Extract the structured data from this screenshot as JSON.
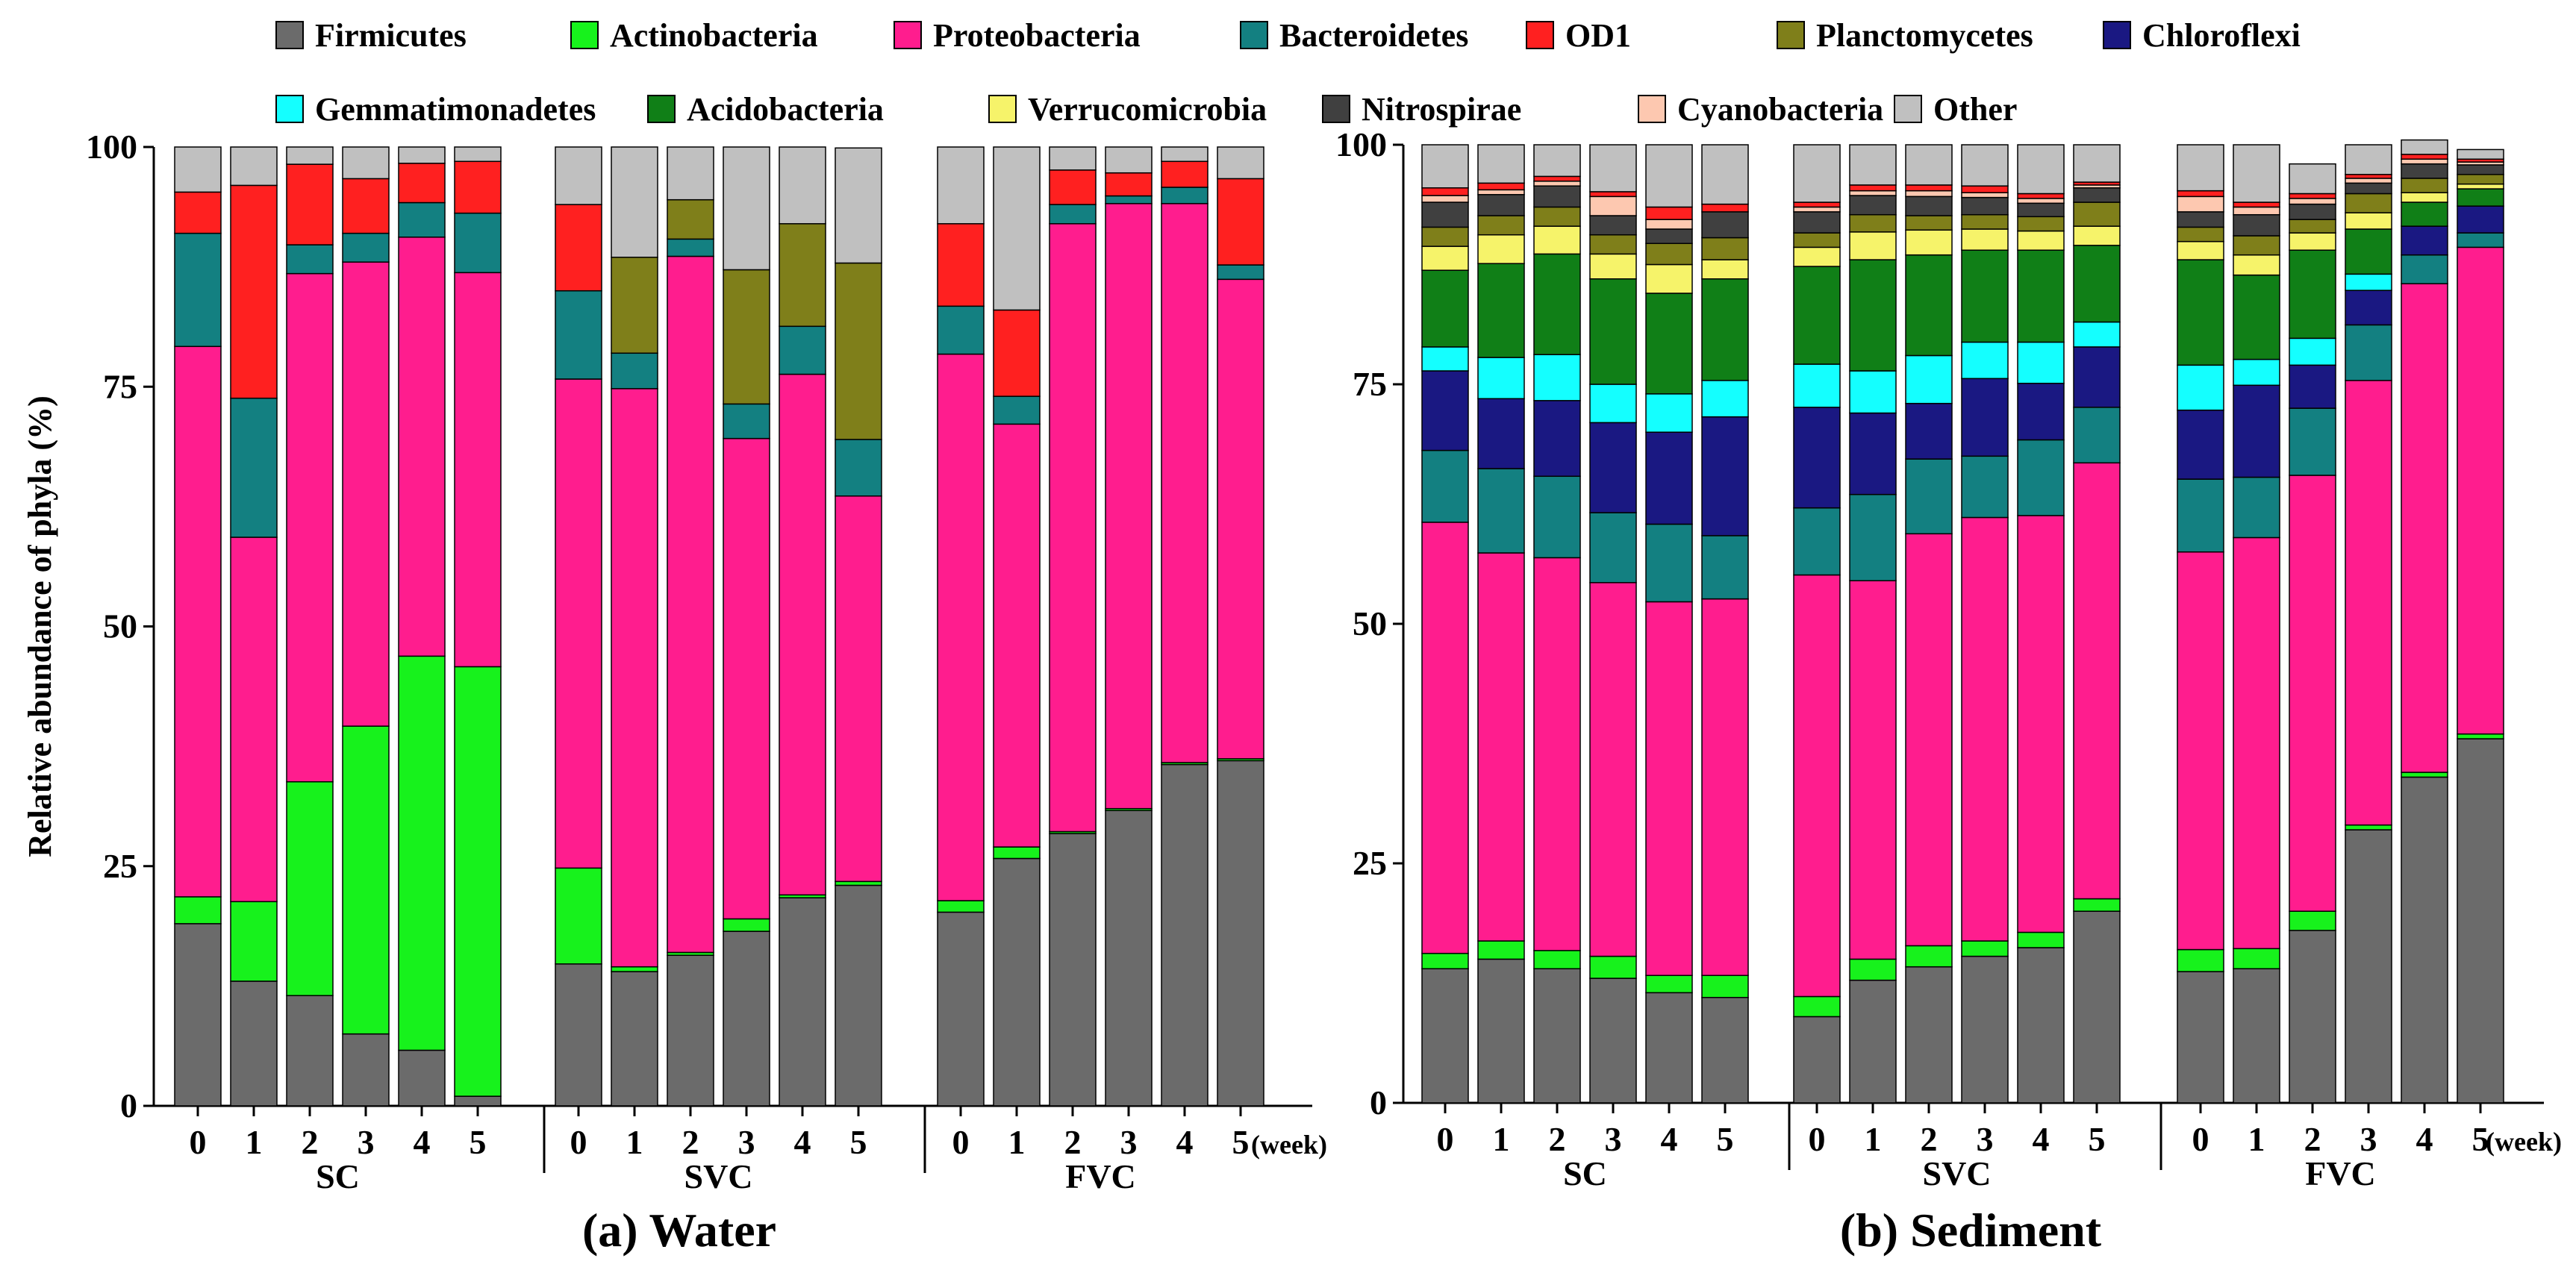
{
  "legend": [
    {
      "name": "Firmicutes",
      "color": "#6b6b6b"
    },
    {
      "name": "Actinobacteria",
      "color": "#17f21c"
    },
    {
      "name": "Proteobacteria",
      "color": "#ff1d8e"
    },
    {
      "name": "Bacteroidetes",
      "color": "#138081"
    },
    {
      "name": "OD1",
      "color": "#ff2020"
    },
    {
      "name": "Planctomycetes",
      "color": "#7f7f1a"
    },
    {
      "name": "Chloroflexi",
      "color": "#1a1882"
    },
    {
      "name": "Gemmatimonadetes",
      "color": "#14ffff"
    },
    {
      "name": "Acidobacteria",
      "color": "#107f17"
    },
    {
      "name": "Verrucomicrobia",
      "color": "#f6f36a"
    },
    {
      "name": "Nitrospirae",
      "color": "#404040"
    },
    {
      "name": "Cyanobacteria",
      "color": "#fdc8b0"
    },
    {
      "name": "Other",
      "color": "#c0c0c0"
    }
  ],
  "chart_data": [
    {
      "type": "bar",
      "stacked": true,
      "title": "(a) Water",
      "ylabel": "Relative abundance of phyla (%)",
      "ylim": [
        0,
        100
      ],
      "yticks": [
        "0",
        "25",
        "50",
        "75",
        "100"
      ],
      "week_unit": "(week)",
      "groups": [
        {
          "name": "SC",
          "categories": [
            "0",
            "1",
            "2",
            "3",
            "4",
            "5"
          ]
        },
        {
          "name": "SVC",
          "categories": [
            "0",
            "1",
            "2",
            "3",
            "4",
            "5"
          ]
        },
        {
          "name": "FVC",
          "categories": [
            "0",
            "1",
            "2",
            "3",
            "4",
            "5"
          ]
        }
      ],
      "series": [
        {
          "name": "Firmicutes",
          "values": [
            19,
            13,
            11.5,
            7.5,
            5.8,
            1,
            14.8,
            14,
            15.7,
            18.2,
            21.7,
            23,
            20.2,
            25.8,
            28.4,
            30.8,
            35.6,
            36
          ]
        },
        {
          "name": "Actinobacteria",
          "values": [
            2.8,
            8.3,
            22.3,
            32.1,
            41.1,
            44.8,
            10,
            0.5,
            0.3,
            1.3,
            0.3,
            0.4,
            1.2,
            1.2,
            0.2,
            0.2,
            0.2,
            0.2
          ]
        },
        {
          "name": "Proteobacteria",
          "values": [
            57.4,
            38,
            53,
            48.4,
            43.7,
            41.1,
            51,
            60.3,
            72.6,
            50.1,
            54.3,
            40.2,
            57,
            44.1,
            63.4,
            63.1,
            58.3,
            50
          ]
        },
        {
          "name": "Bacteroidetes",
          "values": [
            11.8,
            14.5,
            3,
            3,
            3.6,
            6.2,
            9.2,
            3.7,
            1.8,
            3.6,
            5,
            5.9,
            5,
            2.9,
            2,
            0.8,
            1.7,
            1.5
          ]
        },
        {
          "name": "OD1",
          "values": [
            4.3,
            22.2,
            8.4,
            5.7,
            4.1,
            5.4,
            9,
            0,
            0,
            0,
            0,
            0,
            8.6,
            9,
            3.6,
            2.4,
            2.7,
            9
          ]
        },
        {
          "name": "Planctomycetes",
          "values": [
            0,
            0,
            0,
            0,
            0,
            0,
            0,
            10,
            4.1,
            14,
            10.7,
            18.4,
            0,
            0,
            0,
            0,
            0,
            0
          ]
        },
        {
          "name": "Other",
          "values": [
            4.7,
            4,
            1.8,
            3.3,
            1.7,
            1.5,
            6,
            11.5,
            5.5,
            12.8,
            8,
            12,
            8,
            17,
            2.4,
            2.7,
            1.5,
            3.3
          ]
        }
      ]
    },
    {
      "type": "bar",
      "stacked": true,
      "title": "(b) Sediment",
      "ylim": [
        0,
        100
      ],
      "yticks": [
        "0",
        "25",
        "50",
        "75",
        "100"
      ],
      "week_unit": "(week)",
      "groups": [
        {
          "name": "SC",
          "categories": [
            "0",
            "1",
            "2",
            "3",
            "4",
            "5"
          ]
        },
        {
          "name": "SVC",
          "categories": [
            "0",
            "1",
            "2",
            "3",
            "4",
            "5"
          ]
        },
        {
          "name": "FVC",
          "categories": [
            "0",
            "1",
            "2",
            "3",
            "4",
            "5"
          ]
        }
      ],
      "series": [
        {
          "name": "Firmicutes",
          "values": [
            14,
            15,
            14,
            13,
            11.5,
            11,
            9,
            12.8,
            14.2,
            15.3,
            16.2,
            20,
            13.7,
            14,
            18,
            28.5,
            34,
            38
          ]
        },
        {
          "name": "Actinobacteria",
          "values": [
            1.6,
            1.9,
            1.9,
            2.3,
            1.8,
            2.3,
            2.1,
            2.2,
            2.2,
            1.6,
            1.6,
            1.3,
            2.3,
            2.1,
            2,
            0.5,
            0.5,
            0.5
          ]
        },
        {
          "name": "Proteobacteria",
          "values": [
            45,
            40.5,
            41,
            39,
            39,
            39.3,
            44,
            39.5,
            43,
            44.2,
            43.5,
            45.5,
            41.5,
            42.9,
            45.5,
            46.4,
            51,
            50.8
          ]
        },
        {
          "name": "Bacteroidetes",
          "values": [
            7.5,
            8.8,
            8.5,
            7.3,
            8.1,
            6.6,
            7,
            9,
            7.8,
            6.4,
            7.9,
            5.8,
            7.6,
            6.3,
            7,
            5.8,
            3,
            1.5
          ]
        },
        {
          "name": "Chloroflexi",
          "values": [
            8.3,
            7.3,
            7.9,
            9.4,
            9.6,
            12.4,
            10.5,
            8.5,
            5.8,
            8.1,
            5.9,
            6.3,
            7.2,
            9.6,
            4.5,
            3.6,
            3,
            2.8
          ]
        },
        {
          "name": "Gemmatimonadetes",
          "values": [
            2.5,
            4.3,
            4.8,
            4,
            4,
            3.8,
            4.5,
            4.4,
            5,
            3.8,
            4.3,
            2.6,
            4.7,
            2.7,
            2.8,
            1.7,
            0,
            0
          ]
        },
        {
          "name": "Acidobacteria",
          "values": [
            8,
            9.8,
            10.5,
            11,
            10.5,
            10.6,
            10.2,
            11.6,
            10.5,
            9.6,
            9.6,
            8,
            11,
            8.8,
            9.2,
            4.7,
            2.5,
            1.8
          ]
        },
        {
          "name": "Verrucomicrobia",
          "values": [
            2.5,
            3,
            2.9,
            2.6,
            3,
            2,
            2,
            2.9,
            2.6,
            2.2,
            2,
            2,
            1.9,
            2.1,
            1.8,
            1.7,
            1,
            0.5
          ]
        },
        {
          "name": "Planctomycetes",
          "values": [
            2,
            2,
            2,
            2,
            2.2,
            2.3,
            1.5,
            1.8,
            1.5,
            1.5,
            1.5,
            2.5,
            1.5,
            2,
            1.4,
            2,
            1.5,
            1
          ]
        },
        {
          "name": "Nitrospirae",
          "values": [
            2.6,
            2.2,
            2.2,
            2,
            1.5,
            2.7,
            2.2,
            2,
            2,
            1.8,
            1.4,
            1.5,
            1.6,
            2.2,
            1.6,
            1.1,
            1.5,
            1
          ]
        },
        {
          "name": "Cyanobacteria",
          "values": [
            0.7,
            0.5,
            0.5,
            2,
            1,
            0,
            0.5,
            0.5,
            0.6,
            0.5,
            0.5,
            0.3,
            1.6,
            0.8,
            0.6,
            0.5,
            0.5,
            0.3
          ]
        },
        {
          "name": "OD1",
          "values": [
            0.8,
            0.7,
            0.5,
            0.5,
            1.3,
            0.8,
            0.5,
            0.6,
            0.6,
            0.7,
            0.5,
            0.3,
            0.6,
            0.5,
            0.5,
            0.4,
            0.5,
            0.3
          ]
        },
        {
          "name": "Other",
          "values": [
            4.5,
            4,
            3.3,
            4.9,
            6.5,
            6.2,
            6,
            4.2,
            4.2,
            4.3,
            5.1,
            3.9,
            4.8,
            6,
            3.1,
            3.1,
            1.5,
            1
          ]
        }
      ]
    }
  ]
}
